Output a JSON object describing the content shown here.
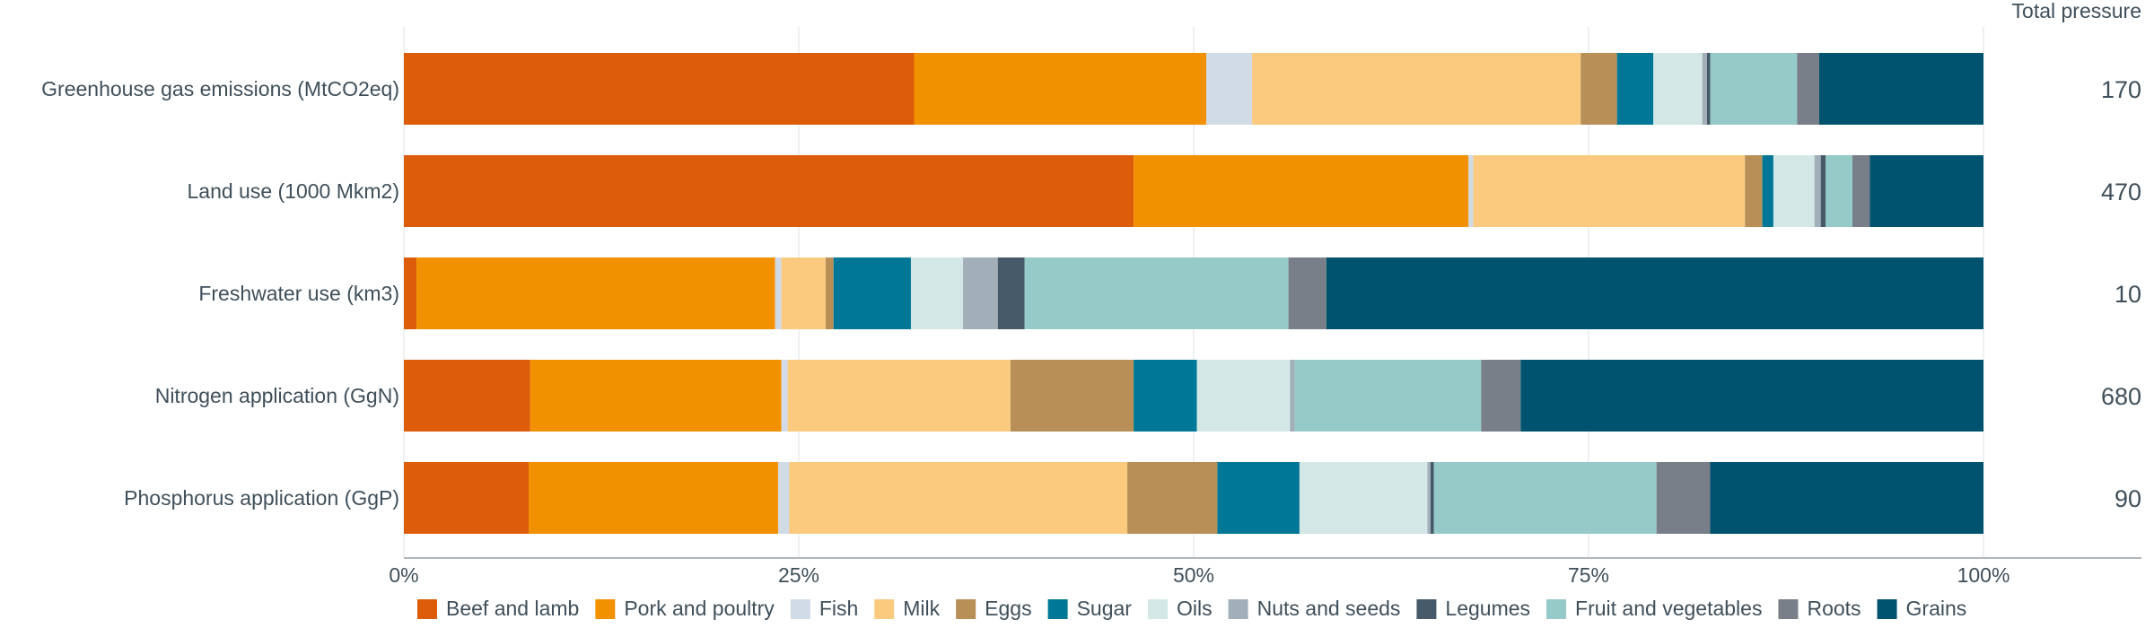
{
  "chart_data": {
    "type": "bar",
    "orientation": "horizontal",
    "stacked": "percent",
    "title": "",
    "total_header": "Total pressure",
    "xlim": [
      0,
      100
    ],
    "xticks": [
      "0%",
      "25%",
      "50%",
      "75%",
      "100%"
    ],
    "grid": true,
    "legend_position": "bottom",
    "categories": [
      "Greenhouse gas emissions (MtCO2eq)",
      "Land use (1000 Mkm2)",
      "Freshwater use (km3)",
      "Nitrogen application (GgN)",
      "Phosphorus application (GgP)"
    ],
    "totals": [
      "170",
      "470",
      "10",
      "680",
      "90"
    ],
    "series": [
      {
        "name": "Beef and lamb",
        "color": "#dd5c0a",
        "values": [
          32.3,
          46.2,
          0.8,
          8.0,
          7.9
        ]
      },
      {
        "name": "Pork and poultry",
        "color": "#f29100",
        "values": [
          18.5,
          21.2,
          22.7,
          15.9,
          15.8
        ]
      },
      {
        "name": "Fish",
        "color": "#d1dbe6",
        "values": [
          2.9,
          0.3,
          0.4,
          0.4,
          0.7
        ]
      },
      {
        "name": "Milk",
        "color": "#fbca7f",
        "values": [
          20.8,
          17.2,
          2.8,
          14.1,
          21.4
        ]
      },
      {
        "name": "Eggs",
        "color": "#b89057",
        "values": [
          2.3,
          1.1,
          0.5,
          7.8,
          5.7
        ]
      },
      {
        "name": "Sugar",
        "color": "#007796",
        "values": [
          2.3,
          0.7,
          4.9,
          4.0,
          5.2
        ]
      },
      {
        "name": "Oils",
        "color": "#d3e8e6",
        "values": [
          3.1,
          2.6,
          3.3,
          5.9,
          8.1
        ]
      },
      {
        "name": "Nuts and seeds",
        "color": "#a2aeb8",
        "values": [
          0.3,
          0.4,
          2.2,
          0.3,
          0.2
        ]
      },
      {
        "name": "Legumes",
        "color": "#475a6a",
        "values": [
          0.2,
          0.3,
          1.7,
          0.0,
          0.2
        ]
      },
      {
        "name": "Fruit and vegetables",
        "color": "#96cac8",
        "values": [
          5.5,
          1.7,
          16.7,
          11.8,
          14.1
        ]
      },
      {
        "name": "Roots",
        "color": "#787f88",
        "values": [
          1.4,
          1.1,
          2.4,
          2.5,
          3.4
        ]
      },
      {
        "name": "Grains",
        "color": "#00536f",
        "values": [
          10.4,
          7.2,
          41.6,
          29.3,
          17.3
        ]
      }
    ]
  }
}
